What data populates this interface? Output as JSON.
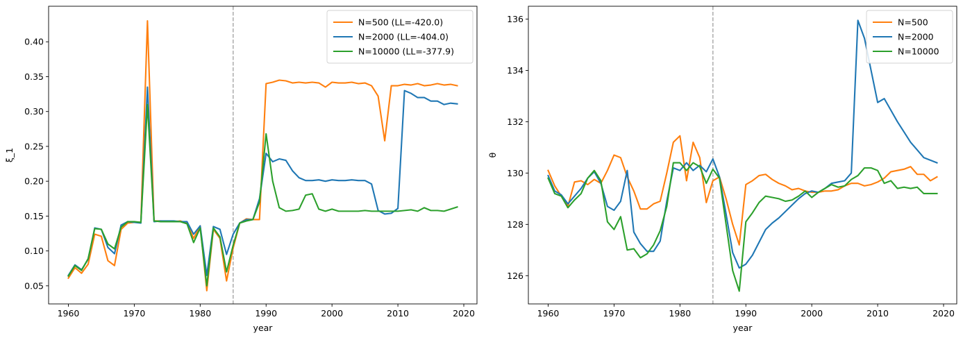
{
  "chart_data": [
    {
      "type": "line",
      "xlabel": "year",
      "ylabel": "ξ_1",
      "xlim": [
        1957,
        2022
      ],
      "ylim": [
        0.024,
        0.451
      ],
      "xticks": [
        1960,
        1970,
        1980,
        1990,
        2000,
        2010,
        2020
      ],
      "yticks": [
        0.05,
        0.1,
        0.15,
        0.2,
        0.25,
        0.3,
        0.35,
        0.4
      ],
      "ytick_labels": [
        "0.05",
        "0.10",
        "0.15",
        "0.20",
        "0.25",
        "0.30",
        "0.35",
        "0.40"
      ],
      "vline": 1985,
      "legend_position": "top-right",
      "x": [
        1960,
        1961,
        1962,
        1963,
        1964,
        1965,
        1966,
        1967,
        1968,
        1969,
        1970,
        1971,
        1972,
        1973,
        1974,
        1975,
        1976,
        1977,
        1978,
        1979,
        1980,
        1981,
        1982,
        1983,
        1984,
        1985,
        1986,
        1987,
        1988,
        1989,
        1990,
        1991,
        1992,
        1993,
        1994,
        1995,
        1996,
        1997,
        1998,
        1999,
        2000,
        2001,
        2002,
        2003,
        2004,
        2005,
        2006,
        2007,
        2008,
        2009,
        2010,
        2011,
        2012,
        2013,
        2014,
        2015,
        2016,
        2017,
        2018,
        2019
      ],
      "series": [
        {
          "name": "N=500",
          "legend_label": "N=500 (LL=-420.0)",
          "color": "#ff7f0e",
          "values": [
            0.061,
            0.076,
            0.068,
            0.081,
            0.124,
            0.121,
            0.086,
            0.079,
            0.131,
            0.14,
            0.141,
            0.141,
            0.43,
            0.143,
            0.143,
            0.142,
            0.142,
            0.143,
            0.14,
            0.118,
            0.136,
            0.043,
            0.131,
            0.118,
            0.057,
            0.104,
            0.14,
            0.146,
            0.145,
            0.145,
            0.34,
            0.342,
            0.345,
            0.344,
            0.341,
            0.342,
            0.341,
            0.342,
            0.341,
            0.335,
            0.342,
            0.341,
            0.341,
            0.342,
            0.34,
            0.341,
            0.337,
            0.322,
            0.258,
            0.337,
            0.337,
            0.339,
            0.338,
            0.34,
            0.337,
            0.338,
            0.34,
            0.338,
            0.339,
            0.337
          ]
        },
        {
          "name": "N=2000",
          "legend_label": "N=2000 (LL=-404.0)",
          "color": "#1f77b4",
          "values": [
            0.065,
            0.08,
            0.073,
            0.088,
            0.133,
            0.131,
            0.105,
            0.096,
            0.137,
            0.142,
            0.141,
            0.14,
            0.335,
            0.142,
            0.143,
            0.143,
            0.143,
            0.142,
            0.142,
            0.124,
            0.136,
            0.065,
            0.135,
            0.131,
            0.095,
            0.124,
            0.14,
            0.145,
            0.145,
            0.175,
            0.24,
            0.228,
            0.232,
            0.23,
            0.215,
            0.205,
            0.201,
            0.201,
            0.202,
            0.2,
            0.202,
            0.201,
            0.201,
            0.202,
            0.201,
            0.201,
            0.196,
            0.158,
            0.153,
            0.154,
            0.161,
            0.33,
            0.326,
            0.32,
            0.32,
            0.315,
            0.315,
            0.31,
            0.312,
            0.311
          ]
        },
        {
          "name": "N=10000",
          "legend_label": "N=10000 (LL=-377.9)",
          "color": "#2ca02c",
          "values": [
            0.064,
            0.079,
            0.072,
            0.089,
            0.132,
            0.131,
            0.11,
            0.103,
            0.134,
            0.142,
            0.142,
            0.141,
            0.31,
            0.143,
            0.142,
            0.142,
            0.142,
            0.142,
            0.139,
            0.112,
            0.133,
            0.05,
            0.133,
            0.12,
            0.07,
            0.108,
            0.14,
            0.143,
            0.145,
            0.17,
            0.268,
            0.2,
            0.162,
            0.157,
            0.158,
            0.16,
            0.18,
            0.182,
            0.16,
            0.157,
            0.16,
            0.157,
            0.157,
            0.157,
            0.157,
            0.158,
            0.157,
            0.157,
            0.157,
            0.157,
            0.157,
            0.158,
            0.159,
            0.157,
            0.162,
            0.158,
            0.158,
            0.157,
            0.16,
            0.163
          ]
        }
      ]
    },
    {
      "type": "line",
      "xlabel": "year",
      "ylabel": "θ",
      "xlim": [
        1957,
        2022
      ],
      "ylim": [
        124.9,
        136.5
      ],
      "xticks": [
        1960,
        1970,
        1980,
        1990,
        2000,
        2010,
        2020
      ],
      "yticks": [
        126,
        128,
        130,
        132,
        134,
        136
      ],
      "ytick_labels": [
        "126",
        "128",
        "130",
        "132",
        "134",
        "136"
      ],
      "vline": 1985,
      "legend_position": "top-right",
      "x": [
        1960,
        1961,
        1962,
        1963,
        1964,
        1965,
        1966,
        1967,
        1968,
        1969,
        1970,
        1971,
        1972,
        1973,
        1974,
        1975,
        1976,
        1977,
        1978,
        1979,
        1980,
        1981,
        1982,
        1983,
        1984,
        1985,
        1986,
        1987,
        1988,
        1989,
        1990,
        1991,
        1992,
        1993,
        1994,
        1995,
        1996,
        1997,
        1998,
        1999,
        2000,
        2001,
        2002,
        2003,
        2004,
        2005,
        2006,
        2007,
        2008,
        2009,
        2010,
        2011,
        2012,
        2013,
        2014,
        2015,
        2016,
        2017,
        2018,
        2019
      ],
      "series": [
        {
          "name": "N=500",
          "legend_label": "N=500",
          "color": "#ff7f0e",
          "values": [
            130.1,
            129.5,
            129.1,
            128.7,
            129.65,
            129.7,
            129.55,
            129.75,
            129.6,
            130.1,
            130.7,
            130.6,
            129.85,
            129.3,
            128.6,
            128.6,
            128.8,
            128.9,
            130.0,
            131.2,
            131.45,
            129.7,
            131.2,
            130.6,
            128.85,
            129.7,
            129.85,
            129.0,
            128.0,
            127.2,
            129.55,
            129.7,
            129.9,
            129.95,
            129.75,
            129.6,
            129.5,
            129.35,
            129.4,
            129.3,
            129.25,
            129.25,
            129.3,
            129.3,
            129.35,
            129.5,
            129.6,
            129.6,
            129.5,
            129.55,
            129.65,
            129.8,
            130.05,
            130.1,
            130.15,
            130.25,
            129.95,
            129.95,
            129.7,
            129.85
          ]
        },
        {
          "name": "N=2000",
          "legend_label": "N=2000",
          "color": "#1f77b4",
          "values": [
            129.9,
            129.3,
            129.15,
            128.8,
            129.1,
            129.4,
            129.8,
            130.05,
            129.6,
            128.7,
            128.55,
            128.9,
            130.1,
            127.7,
            127.25,
            126.95,
            126.95,
            127.35,
            128.9,
            130.2,
            130.1,
            130.4,
            130.1,
            130.3,
            130.05,
            130.55,
            129.85,
            128.4,
            126.9,
            126.3,
            126.45,
            126.8,
            127.3,
            127.8,
            128.05,
            128.25,
            128.5,
            128.75,
            129.0,
            129.2,
            129.3,
            129.25,
            129.4,
            129.6,
            129.65,
            129.7,
            130.0,
            135.95,
            135.25,
            134.0,
            132.75,
            132.9,
            132.45,
            132.0,
            131.6,
            131.2,
            130.9,
            130.6,
            130.5,
            130.4
          ]
        },
        {
          "name": "N=10000",
          "legend_label": "N=10000",
          "color": "#2ca02c",
          "values": [
            129.8,
            129.2,
            129.1,
            128.65,
            128.95,
            129.2,
            129.8,
            130.1,
            129.7,
            128.1,
            127.8,
            128.3,
            127.0,
            127.05,
            126.7,
            126.85,
            127.2,
            127.75,
            128.7,
            130.4,
            130.4,
            130.1,
            130.4,
            130.25,
            129.6,
            130.15,
            129.8,
            128.0,
            126.2,
            125.4,
            128.1,
            128.45,
            128.85,
            129.1,
            129.05,
            129.0,
            128.9,
            128.95,
            129.1,
            129.3,
            129.05,
            129.25,
            129.4,
            129.55,
            129.45,
            129.5,
            129.75,
            129.9,
            130.2,
            130.2,
            130.1,
            129.6,
            129.7,
            129.4,
            129.45,
            129.4,
            129.45,
            129.2,
            129.2,
            129.2
          ]
        }
      ]
    }
  ]
}
